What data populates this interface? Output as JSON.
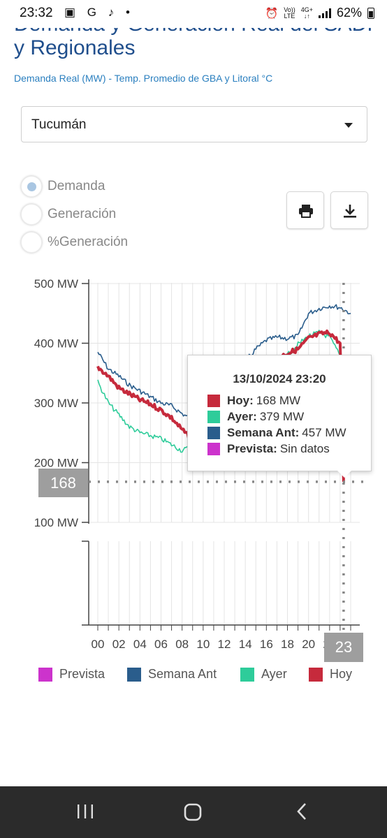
{
  "status_bar": {
    "time": "23:32",
    "left_icons": "▣ G ♪ •",
    "alarm": "⏰",
    "volte_top": "Vo))",
    "volte_bottom": "LTE",
    "net_top": "4G+",
    "net_bottom": "↓↑",
    "battery": "62%"
  },
  "page": {
    "title": "Demanda y Generación Real del SADI y Regionales",
    "subtitle": "Demanda Real (MW) - Temp. Promedio de GBA y Litoral °C"
  },
  "region_select": {
    "value": "Tucumán"
  },
  "radio_options": [
    {
      "label": "Demanda",
      "selected": true
    },
    {
      "label": "Generación",
      "selected": false
    },
    {
      "label": "%Generación",
      "selected": false
    }
  ],
  "buttons": {
    "print_icon": "print-icon",
    "download_icon": "download-icon"
  },
  "colors": {
    "hoy": "#c62a3c",
    "ayer": "#2ecc9a",
    "semana_ant": "#2a5d8c",
    "prevista": "#cc33cc",
    "title": "#1f4e8c",
    "subtitle": "#2a7fbf"
  },
  "chart_data": {
    "type": "line",
    "y_axis": {
      "ticks": [
        "500 MW",
        "400 MW",
        "300 MW",
        "200 MW",
        "100 MW"
      ],
      "ylim": [
        100,
        500
      ]
    },
    "x_axis": {
      "ticks": [
        "00",
        "02",
        "04",
        "06",
        "08",
        "10",
        "12",
        "14",
        "16",
        "18",
        "20",
        "22"
      ]
    },
    "series": [
      {
        "name": "Semana Ant",
        "x": [
          0,
          1,
          2,
          3,
          4,
          5,
          6,
          7,
          8,
          9,
          10,
          11,
          12,
          13,
          14,
          15,
          16,
          17,
          18,
          19,
          20,
          21,
          22,
          23,
          24
        ],
        "values": [
          385,
          357,
          345,
          330,
          320,
          310,
          300,
          295,
          282,
          272,
          280,
          310,
          330,
          350,
          370,
          390,
          405,
          410,
          408,
          412,
          450,
          458,
          463,
          460,
          450
        ]
      },
      {
        "name": "Ayer",
        "x": [
          0,
          1,
          2,
          3,
          4,
          5,
          6,
          7,
          8,
          9,
          10,
          11,
          12,
          13,
          14,
          15,
          16,
          17,
          18,
          19,
          20,
          21,
          22,
          23
        ],
        "values": [
          335,
          300,
          280,
          260,
          250,
          245,
          240,
          230,
          220,
          228,
          255,
          280,
          300,
          320,
          340,
          360,
          370,
          375,
          380,
          398,
          412,
          418,
          410,
          379
        ]
      },
      {
        "name": "Hoy",
        "x": [
          0,
          1,
          2,
          3,
          4,
          5,
          6,
          7,
          8,
          9,
          10,
          11,
          12,
          13,
          14,
          15,
          16,
          17,
          18,
          19,
          20,
          21,
          22,
          23,
          23.33
        ],
        "values": [
          360,
          345,
          325,
          315,
          305,
          298,
          288,
          275,
          255,
          238,
          250,
          275,
          295,
          315,
          335,
          350,
          365,
          375,
          383,
          390,
          408,
          415,
          418,
          400,
          168
        ]
      },
      {
        "name": "Prevista",
        "x": [],
        "values": []
      }
    ],
    "crosshair": {
      "y_label": "168",
      "x_label": "23"
    }
  },
  "tooltip": {
    "title": "13/10/2024 23:20",
    "rows": [
      {
        "name": "Hoy:",
        "value": "168 MW"
      },
      {
        "name": "Ayer:",
        "value": "379 MW"
      },
      {
        "name": "Semana Ant:",
        "value": "457 MW"
      },
      {
        "name": "Prevista:",
        "value": "Sin datos"
      }
    ]
  },
  "legend": [
    {
      "name": "Prevista"
    },
    {
      "name": "Semana Ant"
    },
    {
      "name": "Ayer"
    },
    {
      "name": "Hoy"
    }
  ],
  "nav_bar": {
    "recents": "recents-icon",
    "home": "home-icon",
    "back": "back-icon"
  }
}
